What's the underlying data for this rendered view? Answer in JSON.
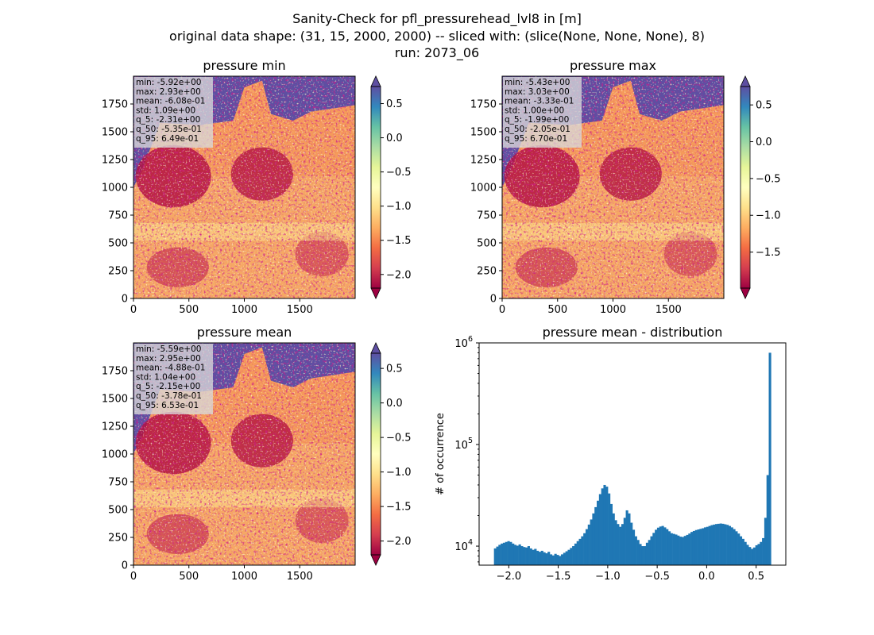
{
  "suptitle": {
    "line1": "Sanity-Check for pfl_pressurehead_lvl8 in [m]",
    "line2": "original data shape: (31, 15, 2000, 2000) -- sliced with: (slice(None, None, None), 8)",
    "line3": "run: 2073_06"
  },
  "chart_data": [
    {
      "type": "heatmap",
      "title": "pressure min",
      "x_ticks": [
        0,
        500,
        1000,
        1500
      ],
      "y_ticks": [
        0,
        250,
        500,
        750,
        1000,
        1250,
        1500,
        1750
      ],
      "xlim": [
        0,
        2000
      ],
      "ylim": [
        0,
        2000
      ],
      "colormap": "Spectral",
      "colorbar_ticks": [
        -2.0,
        -1.5,
        -1.0,
        -0.5,
        0.0,
        0.5
      ],
      "colorbar_tick_labels": [
        "−2.0",
        "−1.5",
        "−1.0",
        "−0.5",
        "0.0",
        "0.5"
      ],
      "colorbar_range": [
        -2.2,
        0.75
      ],
      "stats": [
        "min: -5.92e+00",
        "max: 2.93e+00",
        "mean: -6.08e-01",
        "std: 1.09e+00",
        "q_5: -2.31e+00",
        "q_50: -5.35e-01",
        "q_95: 6.49e-01"
      ]
    },
    {
      "type": "heatmap",
      "title": "pressure max",
      "x_ticks": [
        0,
        500,
        1000,
        1500
      ],
      "y_ticks": [
        0,
        250,
        500,
        750,
        1000,
        1250,
        1500,
        1750
      ],
      "xlim": [
        0,
        2000
      ],
      "ylim": [
        0,
        2000
      ],
      "colormap": "Spectral",
      "colorbar_ticks": [
        -1.5,
        -1.0,
        -0.5,
        0.0,
        0.5
      ],
      "colorbar_tick_labels": [
        "−1.5",
        "−1.0",
        "−0.5",
        "0.0",
        "0.5"
      ],
      "colorbar_range": [
        -1.99,
        0.75
      ],
      "stats": [
        "min: -5.43e+00",
        "max: 3.03e+00",
        "mean: -3.33e-01",
        "std: 1.00e+00",
        "q_5: -1.99e+00",
        "q_50: -2.05e-01",
        "q_95: 6.70e-01"
      ]
    },
    {
      "type": "heatmap",
      "title": "pressure mean",
      "x_ticks": [
        0,
        500,
        1000,
        1500
      ],
      "y_ticks": [
        0,
        250,
        500,
        750,
        1000,
        1250,
        1500,
        1750
      ],
      "xlim": [
        0,
        2000
      ],
      "ylim": [
        0,
        2000
      ],
      "colormap": "Spectral",
      "colorbar_ticks": [
        -2.0,
        -1.5,
        -1.0,
        -0.5,
        0.0,
        0.5
      ],
      "colorbar_tick_labels": [
        "−2.0",
        "−1.5",
        "−1.0",
        "−0.5",
        "0.0",
        "0.5"
      ],
      "colorbar_range": [
        -2.2,
        0.72
      ],
      "stats": [
        "min: -5.59e+00",
        "max: 2.95e+00",
        "mean: -4.88e-01",
        "std: 1.04e+00",
        "q_5: -2.15e+00",
        "q_50: -3.78e-01",
        "q_95: 6.53e-01"
      ]
    },
    {
      "type": "bar",
      "title": "pressure mean - distribution",
      "ylabel": "# of occurrence",
      "yscale": "log",
      "xlim": [
        -2.3,
        0.8
      ],
      "ylim": [
        6500,
        1000000
      ],
      "x_ticks": [
        -2.0,
        -1.5,
        -1.0,
        -0.5,
        0.0,
        0.5
      ],
      "x_tick_labels": [
        "−2.0",
        "−1.5",
        "−1.0",
        "−0.5",
        "0.0",
        "0.5"
      ],
      "y_ticks": [
        10000,
        100000,
        1000000
      ],
      "y_tick_bases": [
        "10",
        "10",
        "10"
      ],
      "y_tick_exps": [
        "4",
        "5",
        "6"
      ],
      "bar_color": "#1f77b4",
      "bin_range": [
        -2.15,
        0.65
      ],
      "counts": [
        9500,
        9900,
        10300,
        10600,
        10800,
        11000,
        11200,
        11000,
        10600,
        10300,
        10100,
        10400,
        10000,
        9800,
        9700,
        10000,
        9500,
        9200,
        9400,
        9000,
        8800,
        9000,
        8700,
        8500,
        8800,
        8300,
        8100,
        8400,
        8200,
        8000,
        8300,
        8600,
        8900,
        9200,
        9600,
        10000,
        10600,
        11200,
        11800,
        12500,
        13400,
        14700,
        16300,
        18300,
        21000,
        24200,
        28000,
        32500,
        37000,
        40000,
        38500,
        33000,
        26000,
        21000,
        18000,
        16500,
        15500,
        16500,
        19000,
        22500,
        21000,
        17000,
        14500,
        12500,
        11500,
        10500,
        10000,
        10000,
        10800,
        11500,
        12500,
        13500,
        14500,
        15200,
        15600,
        15800,
        15300,
        14700,
        14000,
        13400,
        13200,
        13000,
        12700,
        12400,
        12300,
        12600,
        12900,
        13300,
        13800,
        14100,
        14400,
        14600,
        14800,
        15000,
        15300,
        15500,
        15800,
        16100,
        16300,
        16500,
        16600,
        16700,
        16600,
        16400,
        16200,
        15800,
        15300,
        14700,
        14000,
        13300,
        12500,
        11800,
        11000,
        10300,
        9800,
        9400,
        9700,
        10200,
        10500,
        11000,
        12000,
        19000,
        50000,
        800000
      ]
    }
  ]
}
